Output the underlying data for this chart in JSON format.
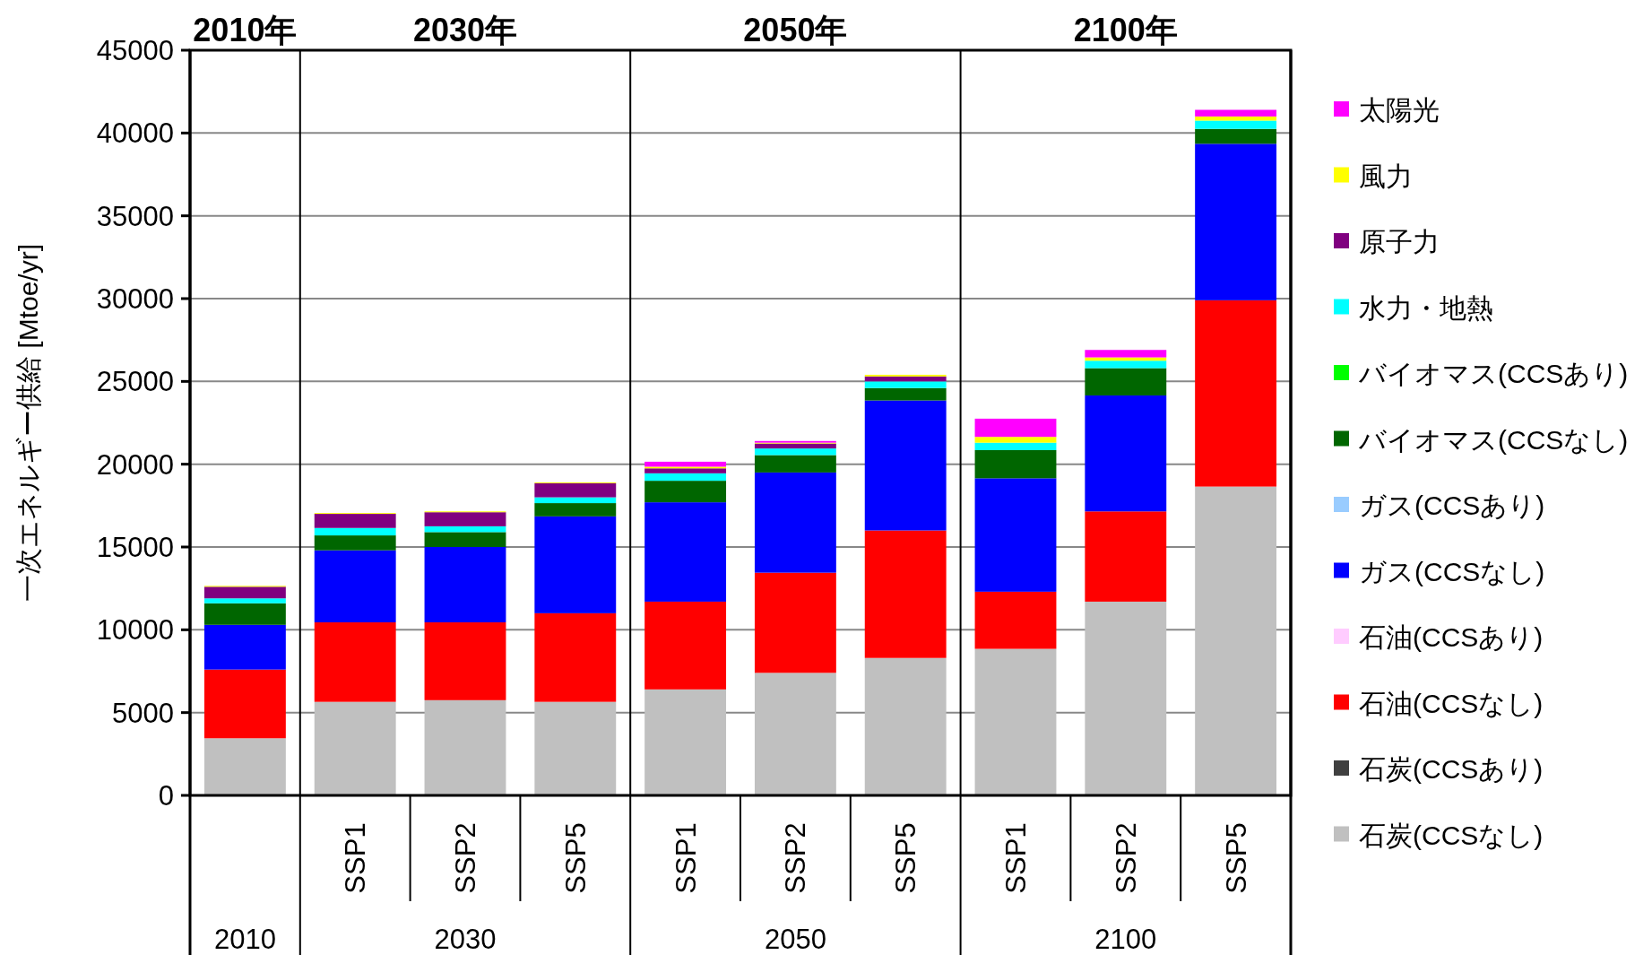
{
  "chart_data": {
    "type": "bar",
    "stacked": true,
    "ylabel": "一次エネルギー供給 [Mtoe/yr]",
    "categories": [
      null,
      "SSP1",
      "SSP2",
      "SSP5",
      "SSP1",
      "SSP2",
      "SSP5",
      "SSP1",
      "SSP2",
      "SSP5"
    ],
    "annotations": [
      "2010年",
      "2030年",
      "2050年",
      "2100年",
      "2010",
      "2030",
      "2050",
      "2100"
    ],
    "ylim": [
      0,
      45000
    ],
    "yticks": [
      0,
      5000,
      10000,
      15000,
      20000,
      25000,
      30000,
      35000,
      40000,
      45000
    ],
    "grid": "y",
    "legend": "right",
    "series": [
      {
        "name": "石炭(CCSなし)",
        "color": "#c0c0c0",
        "values": [
          3450,
          5650,
          5750,
          5650,
          6400,
          7400,
          8300,
          8850,
          11700,
          18650
        ]
      },
      {
        "name": "石炭(CCSあり)",
        "color": "#404040",
        "values": [
          0,
          0,
          0,
          0,
          0,
          0,
          0,
          0,
          0,
          0
        ]
      },
      {
        "name": "石油(CCSなし)",
        "color": "#ff0000",
        "values": [
          4150,
          4800,
          4700,
          5350,
          5300,
          6050,
          7700,
          3450,
          5450,
          11250
        ]
      },
      {
        "name": "石油(CCSあり)",
        "color": "#ffccff",
        "values": [
          0,
          0,
          0,
          0,
          0,
          0,
          0,
          0,
          0,
          0
        ]
      },
      {
        "name": "ガス(CCSなし)",
        "color": "#0000ff",
        "values": [
          2700,
          4350,
          4550,
          5850,
          6000,
          6050,
          7850,
          6850,
          7000,
          9450
        ]
      },
      {
        "name": "ガス(CCSあり)",
        "color": "#99ccff",
        "values": [
          0,
          0,
          0,
          0,
          0,
          0,
          0,
          0,
          0,
          0
        ]
      },
      {
        "name": "バイオマス(CCSなし)",
        "color": "#006600",
        "values": [
          1300,
          900,
          900,
          800,
          1300,
          1050,
          750,
          1700,
          1650,
          900
        ]
      },
      {
        "name": "バイオマス(CCSあり)",
        "color": "#00ff00",
        "values": [
          0,
          0,
          0,
          0,
          0,
          0,
          0,
          0,
          0,
          0
        ]
      },
      {
        "name": "水力・地熱",
        "color": "#00ffff",
        "values": [
          300,
          450,
          350,
          350,
          450,
          400,
          400,
          450,
          450,
          500
        ]
      },
      {
        "name": "原子力",
        "color": "#800080",
        "values": [
          700,
          850,
          850,
          850,
          300,
          300,
          300,
          0,
          0,
          0
        ]
      },
      {
        "name": "風力",
        "color": "#ffff00",
        "values": [
          50,
          50,
          50,
          50,
          100,
          50,
          100,
          350,
          200,
          250
        ]
      },
      {
        "name": "太陽光",
        "color": "#ff00ff",
        "values": [
          0,
          0,
          0,
          0,
          300,
          100,
          0,
          1100,
          450,
          400
        ]
      }
    ]
  }
}
